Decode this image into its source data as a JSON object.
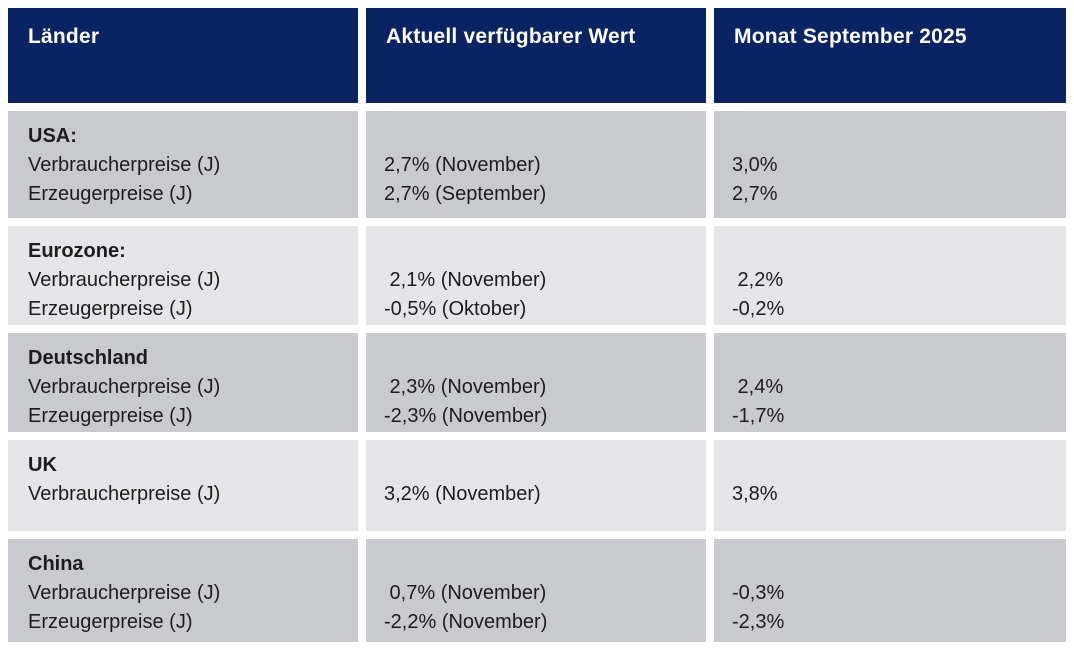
{
  "colors": {
    "header_bg": "#0a2463",
    "header_text": "#ffffff",
    "row_dark": "#c9cacd",
    "row_light": "#e5e5e7",
    "text": "#1d1d1f"
  },
  "chart_data": {
    "type": "table",
    "columns": [
      "Länder",
      "Aktuell verfügbarer Wert",
      "Monat September 2025"
    ],
    "rows": [
      {
        "country": "USA:",
        "metrics": [
          "Verbraucherpreise (J)",
          "Erzeugerpreise (J)"
        ],
        "current": [
          "2,7% (November)",
          "2,7% (September)"
        ],
        "september": [
          "3,0%",
          "2,7%"
        ]
      },
      {
        "country": "Eurozone:",
        "metrics": [
          "Verbraucherpreise (J)",
          "Erzeugerpreise (J)"
        ],
        "current": [
          " 2,1% (November)",
          "-0,5% (Oktober)"
        ],
        "september": [
          " 2,2%",
          "-0,2%"
        ]
      },
      {
        "country": "Deutschland",
        "metrics": [
          "Verbraucherpreise (J)",
          "Erzeugerpreise (J)"
        ],
        "current": [
          " 2,3% (November)",
          "-2,3% (November)"
        ],
        "september": [
          " 2,4%",
          "-1,7%"
        ]
      },
      {
        "country": "UK",
        "metrics": [
          "Verbraucherpreise (J)"
        ],
        "current": [
          "3,2% (November)"
        ],
        "september": [
          "3,8%"
        ]
      },
      {
        "country": "China",
        "metrics": [
          "Verbraucherpreise (J)",
          "Erzeugerpreise (J)"
        ],
        "current": [
          " 0,7% (November)",
          "-2,2% (November)"
        ],
        "september": [
          "-0,3%",
          "-2,3%"
        ]
      }
    ]
  }
}
